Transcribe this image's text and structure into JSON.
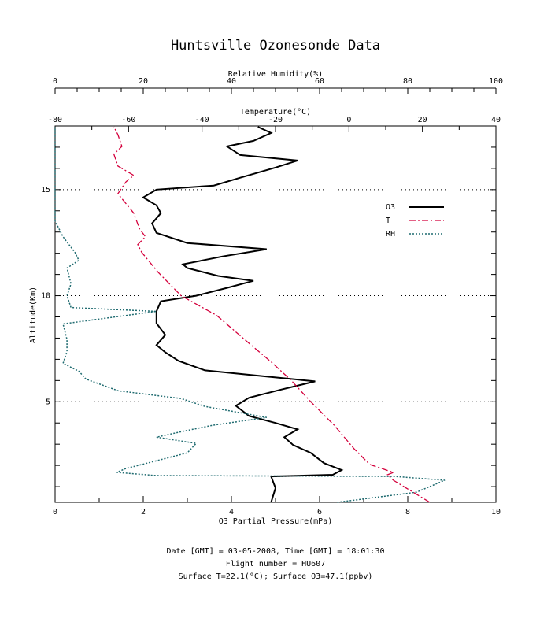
{
  "chart_data": {
    "type": "profile",
    "title": "Huntsville Ozonesonde Data",
    "xlabel": "O3 Partial Pressure(mPa)",
    "xlim": [
      0,
      10
    ],
    "xticks": [
      0,
      2,
      4,
      6,
      8,
      10
    ],
    "xminor_ticks": [
      1,
      3,
      5,
      7,
      9
    ],
    "t_axis": {
      "label": "Temperature(°C)",
      "lim": [
        -80,
        40
      ],
      "ticks": [
        -80,
        -60,
        -40,
        -20,
        0,
        20,
        40
      ],
      "minor_ticks": [
        -70,
        -50,
        -30,
        -10,
        10,
        30
      ]
    },
    "rh_axis": {
      "label": "Relative Humidity(%)",
      "lim": [
        0,
        100
      ],
      "ticks": [
        0,
        20,
        40,
        60,
        80,
        100
      ],
      "minor_ticks": [
        5,
        10,
        15,
        25,
        30,
        35,
        45,
        50,
        55,
        65,
        70,
        75,
        85,
        90,
        95
      ]
    },
    "ylabel": "Altitude(Km)",
    "ylim": [
      0.26,
      18
    ],
    "yticks": [
      5,
      10,
      15
    ],
    "yminor_ticks": [
      1,
      2,
      3,
      4,
      6,
      7,
      8,
      9,
      11,
      12,
      13,
      14,
      16,
      17,
      18
    ],
    "grid": true,
    "legend": "upper right",
    "series": [
      {
        "name": "O3",
        "color": "#000000",
        "axis": "x",
        "style": "solid",
        "altitude": [
          0.26,
          0.93,
          1.48,
          1.56,
          1.78,
          2.11,
          2.59,
          2.96,
          3.33,
          3.7,
          4.0,
          4.33,
          4.81,
          5.19,
          5.56,
          5.96,
          6.19,
          6.48,
          6.93,
          7.33,
          7.67,
          8.15,
          8.7,
          9.26,
          9.74,
          10.0,
          10.37,
          10.7,
          10.93,
          11.3,
          11.48,
          11.85,
          12.19,
          12.48,
          12.96,
          13.41,
          13.89,
          14.26,
          14.63,
          15.0,
          15.19,
          15.56,
          16.04,
          16.37,
          16.63,
          17.04,
          17.3,
          17.67,
          17.96
        ],
        "values": [
          4.9,
          5.0,
          4.9,
          6.3,
          6.5,
          6.1,
          5.8,
          5.4,
          5.2,
          5.5,
          5.0,
          4.4,
          4.1,
          4.4,
          5.1,
          5.9,
          4.8,
          3.4,
          2.8,
          2.5,
          2.3,
          2.5,
          2.3,
          2.3,
          2.4,
          3.2,
          3.9,
          4.5,
          3.7,
          3.0,
          2.9,
          3.8,
          4.8,
          3.0,
          2.3,
          2.2,
          2.4,
          2.3,
          2.0,
          2.3,
          3.6,
          4.2,
          5.0,
          5.5,
          4.2,
          3.9,
          4.5,
          4.9,
          4.6
        ]
      },
      {
        "name": "T",
        "color": "#d4003c",
        "axis": "t",
        "style": "dashdot",
        "altitude": [
          0.26,
          1.3,
          1.56,
          1.67,
          2.04,
          2.78,
          3.89,
          5.0,
          6.0,
          6.85,
          7.96,
          9.07,
          10.0,
          11.11,
          12.04,
          12.41,
          12.78,
          13.15,
          13.89,
          14.81,
          15.37,
          15.67,
          16.11,
          16.67,
          17.04,
          17.59,
          17.96
        ],
        "values": [
          22,
          12.1,
          10.5,
          12.1,
          5.7,
          1.4,
          -4,
          -10.4,
          -15.7,
          -21,
          -28.6,
          -36,
          -45.7,
          -52,
          -56.4,
          -57.5,
          -55.4,
          -57,
          -58.6,
          -62.9,
          -60.7,
          -58.6,
          -62.9,
          -64,
          -61.8,
          -62.9,
          -64
        ]
      },
      {
        "name": "RH",
        "color": "#1f6b70",
        "axis": "rh",
        "style": "dotted",
        "altitude": [
          0.26,
          0.74,
          1.3,
          1.48,
          1.52,
          1.67,
          1.85,
          2.22,
          2.59,
          3.04,
          3.33,
          3.59,
          3.89,
          4.26,
          4.52,
          4.78,
          5.15,
          5.52,
          6.07,
          6.44,
          6.81,
          7.37,
          7.93,
          8.67,
          9.26,
          9.44,
          10.0,
          10.56,
          11.3,
          11.67,
          12.04,
          12.78,
          13.52,
          16.48,
          17.96
        ],
        "values": [
          64,
          82,
          88.4,
          77,
          23,
          14,
          16,
          23,
          30,
          32,
          23,
          28.6,
          35.7,
          48,
          41,
          34,
          28.6,
          14.3,
          7,
          5.4,
          1.8,
          2.7,
          2.7,
          1.8,
          23,
          3.6,
          2.7,
          3.6,
          2.7,
          5.4,
          4.5,
          1.8,
          0,
          0,
          0
        ]
      }
    ],
    "footer": [
      "Date [GMT] = 03-05-2008,  Time [GMT] = 18:01:30",
      "Flight number = HU607",
      "Surface T=22.1(°C); Surface O3=47.1(ppbv)"
    ]
  }
}
